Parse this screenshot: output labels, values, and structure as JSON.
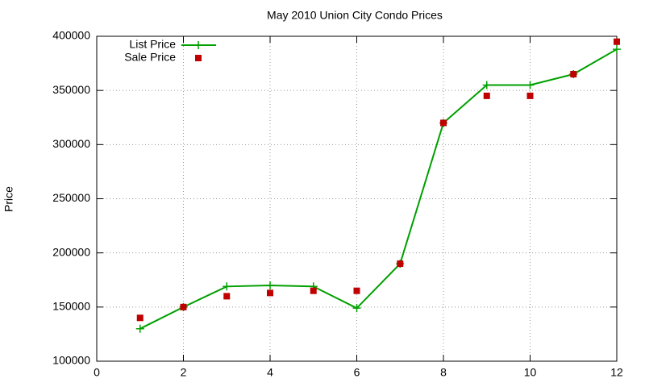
{
  "chart_data": {
    "type": "line",
    "title": "May 2010 Union City Condo Prices",
    "y_label": "Price",
    "x": [
      1,
      2,
      3,
      4,
      5,
      6,
      7,
      8,
      9,
      10,
      11,
      12
    ],
    "series": [
      {
        "name": "List Price",
        "color": "#00a000",
        "mode": "lines+markers",
        "values": [
          130000,
          150000,
          169000,
          170000,
          169000,
          149000,
          190000,
          320000,
          355000,
          355000,
          365000,
          388000
        ]
      },
      {
        "name": "Sale Price",
        "color": "#c00000",
        "mode": "markers",
        "values": [
          140000,
          150000,
          160000,
          163000,
          165000,
          165000,
          190000,
          320000,
          345000,
          345000,
          365000,
          395000
        ]
      }
    ],
    "xlim": [
      0,
      12
    ],
    "xticks": [
      0,
      2,
      4,
      6,
      8,
      10,
      12
    ],
    "ylim": [
      100000,
      400000
    ],
    "yticks": [
      100000,
      150000,
      200000,
      250000,
      300000,
      350000,
      400000
    ],
    "grid": true,
    "legend": "top-left"
  }
}
